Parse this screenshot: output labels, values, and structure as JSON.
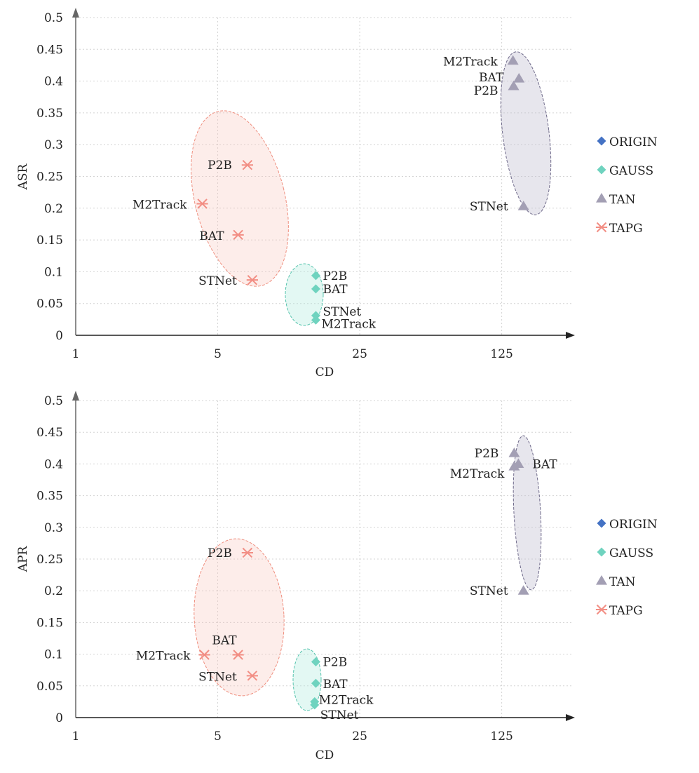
{
  "chart_data": [
    {
      "type": "scatter",
      "xscale": "log",
      "xlabel": "CD",
      "ylabel": "ASR",
      "ylim": [
        0,
        0.5
      ],
      "xlim": [
        1,
        282
      ],
      "x_ticks": [
        {
          "value": 1,
          "label": "1"
        },
        {
          "value": 5,
          "label": "5"
        },
        {
          "value": 25,
          "label": "25"
        },
        {
          "value": 125,
          "label": "125"
        }
      ],
      "y_ticks": [
        "0",
        "0.05",
        "0.1",
        "0.15",
        "0.2",
        "0.25",
        "0.3",
        "0.35",
        "0.4",
        "0.45",
        "0.5"
      ],
      "grid": true,
      "legend_position": "right",
      "series": [
        {
          "name": "ORIGIN",
          "marker": "diamond",
          "color": "#4472c4",
          "points": []
        },
        {
          "name": "GAUSS",
          "marker": "diamond",
          "color": "#6fd3bf",
          "points": [
            {
              "label": "P2B",
              "x": 15.2,
              "y": 0.094
            },
            {
              "label": "BAT",
              "x": 15.2,
              "y": 0.073
            },
            {
              "label": "STNet",
              "x": 15.2,
              "y": 0.031
            },
            {
              "label": "M2Track",
              "x": 15.2,
              "y": 0.024
            }
          ]
        },
        {
          "name": "TAN",
          "marker": "triangle",
          "color": "#a39fb4",
          "points": [
            {
              "label": "M2Track",
              "x": 142,
              "y": 0.432
            },
            {
              "label": "BAT",
              "x": 152,
              "y": 0.404
            },
            {
              "label": "P2B",
              "x": 143,
              "y": 0.392
            },
            {
              "label": "STNet",
              "x": 160,
              "y": 0.203
            }
          ]
        },
        {
          "name": "TAPG",
          "marker": "asterisk",
          "color": "#f28e84",
          "points": [
            {
              "label": "P2B",
              "x": 7.0,
              "y": 0.268
            },
            {
              "label": "M2Track",
              "x": 4.2,
              "y": 0.207
            },
            {
              "label": "BAT",
              "x": 6.3,
              "y": 0.158
            },
            {
              "label": "STNet",
              "x": 7.4,
              "y": 0.087
            }
          ]
        }
      ]
    },
    {
      "type": "scatter",
      "xscale": "log",
      "xlabel": "CD",
      "ylabel": "APR",
      "ylim": [
        0,
        0.5
      ],
      "xlim": [
        1,
        282
      ],
      "x_ticks": [
        {
          "value": 1,
          "label": "1"
        },
        {
          "value": 5,
          "label": "5"
        },
        {
          "value": 25,
          "label": "25"
        },
        {
          "value": 125,
          "label": "125"
        }
      ],
      "y_ticks": [
        "0",
        "0.05",
        "0.1",
        "0.15",
        "0.2",
        "0.25",
        "0.3",
        "0.35",
        "0.4",
        "0.45",
        "0.5"
      ],
      "grid": true,
      "legend_position": "right",
      "series": [
        {
          "name": "ORIGIN",
          "marker": "diamond",
          "color": "#4472c4",
          "points": []
        },
        {
          "name": "GAUSS",
          "marker": "diamond",
          "color": "#6fd3bf",
          "points": [
            {
              "label": "P2B",
              "x": 15.2,
              "y": 0.088
            },
            {
              "label": "BAT",
              "x": 15.2,
              "y": 0.054
            },
            {
              "label": "M2Track",
              "x": 15.0,
              "y": 0.025
            },
            {
              "label": "STNet",
              "x": 15.0,
              "y": 0.02
            }
          ]
        },
        {
          "name": "TAN",
          "marker": "triangle",
          "color": "#a39fb4",
          "points": [
            {
              "label": "P2B",
              "x": 144,
              "y": 0.417
            },
            {
              "label": "BAT",
              "x": 151,
              "y": 0.4
            },
            {
              "label": "M2Track",
              "x": 144,
              "y": 0.396
            },
            {
              "label": "STNet",
              "x": 160,
              "y": 0.2
            }
          ]
        },
        {
          "name": "TAPG",
          "marker": "asterisk",
          "color": "#f28e84",
          "points": [
            {
              "label": "P2B",
              "x": 7.0,
              "y": 0.26
            },
            {
              "label": "M2Track",
              "x": 4.3,
              "y": 0.099
            },
            {
              "label": "BAT",
              "x": 6.3,
              "y": 0.099
            },
            {
              "label": "STNet",
              "x": 7.4,
              "y": 0.066
            }
          ]
        }
      ]
    }
  ]
}
